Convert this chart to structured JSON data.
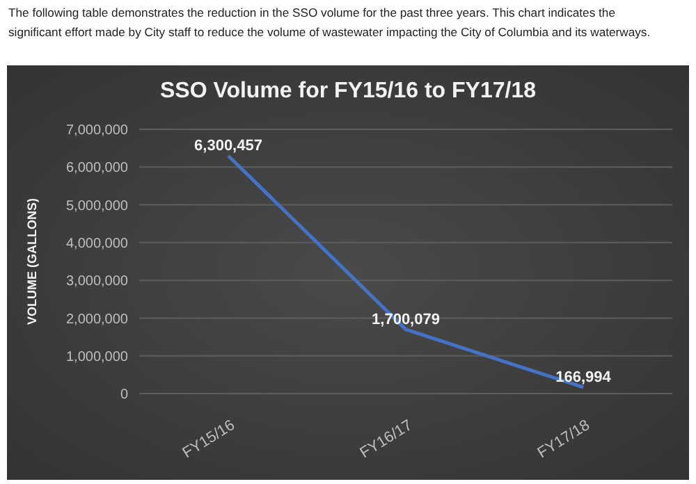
{
  "chart_data": {
    "type": "line",
    "title": "SSO Volume for FY15/16 to FY17/18",
    "ylabel": "VOLUME (GALLONS)",
    "annotations": [
      "The following table demonstrates the reduction in the SSO volume for the past three years. This chart indicates the significant effort made by City staff to reduce the volume of wastewater impacting the City of Columbia and its waterways."
    ],
    "categories": [
      "FY15/16",
      "FY16/17",
      "FY17/18"
    ],
    "values": [
      6300457,
      1700079,
      166994
    ],
    "color": "#4472c4",
    "value_labels": [
      "6,300,457",
      "1,700,079",
      "166,994"
    ],
    "ylim": [
      0,
      7000000
    ],
    "yticks": [
      0,
      {
        "value": 1000000,
        "label": "1,000,000"
      },
      {
        "value": 2000000,
        "label": "2,000,000"
      },
      {
        "value": 3000000,
        "label": "3,000,000"
      },
      {
        "value": 4000000,
        "label": "4,000,000"
      },
      {
        "value": 5000000,
        "label": "5,000,000"
      },
      {
        "value": 6000000,
        "label": "6,000,000"
      },
      {
        "value": 7000000,
        "label": "7,000,000"
      }
    ],
    "grid": "y",
    "marker": "none",
    "line_style": "solid",
    "legend": false
  }
}
